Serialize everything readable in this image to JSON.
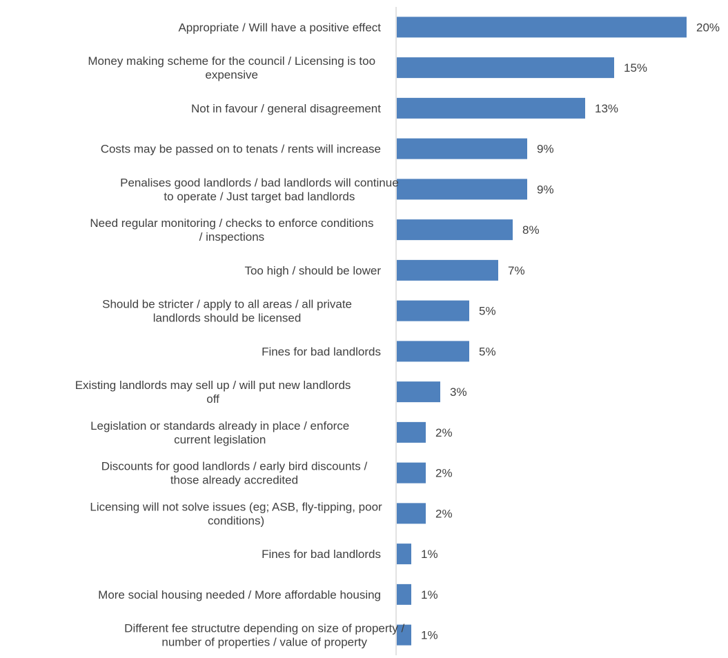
{
  "chart_data": {
    "type": "bar",
    "orientation": "horizontal",
    "categories": [
      [
        "Appropriate / Will have a positive effect"
      ],
      [
        "Money making scheme for the council / Licensing is too",
        "expensive"
      ],
      [
        "Not in favour / general disagreement"
      ],
      [
        "Costs may be passed on to tenats / rents will increase"
      ],
      [
        "Penalises good landlords / bad landlords will continue",
        "to operate / Just target bad landlords"
      ],
      [
        "Need regular monitoring / checks to enforce conditions",
        "/ inspections"
      ],
      [
        "Too high / should be lower"
      ],
      [
        "Should be stricter / apply to all areas / all private",
        "landlords should be licensed"
      ],
      [
        "Fines for bad landlords"
      ],
      [
        "Existing landlords may sell up / will put new landlords",
        "off"
      ],
      [
        "Legislation or standards already in place / enforce",
        "current legislation"
      ],
      [
        "Discounts for good landlords / early bird discounts /",
        "those already accredited"
      ],
      [
        "Licensing will not solve issues (eg; ASB, fly-tipping, poor",
        "conditions)"
      ],
      [
        "Fines for bad landlords"
      ],
      [
        "More social housing needed / More affordable housing"
      ],
      [
        "Different fee structutre depending on size of property /",
        "number of properties / value of property"
      ]
    ],
    "values": [
      20,
      15,
      13,
      9,
      9,
      8,
      7,
      5,
      5,
      3,
      2,
      2,
      2,
      1,
      1,
      1
    ],
    "value_labels": [
      "20%",
      "15%",
      "13%",
      "9%",
      "9%",
      "8%",
      "7%",
      "5%",
      "5%",
      "3%",
      "2%",
      "2%",
      "2%",
      "1%",
      "1%",
      "1%"
    ],
    "title": "",
    "xlabel": "",
    "ylabel": "",
    "xlim": [
      0,
      20
    ],
    "grid": false,
    "legend": "none",
    "bar_color": "#4f81bd",
    "axis_color": "#d9d9d9",
    "text_color": "#404040"
  }
}
